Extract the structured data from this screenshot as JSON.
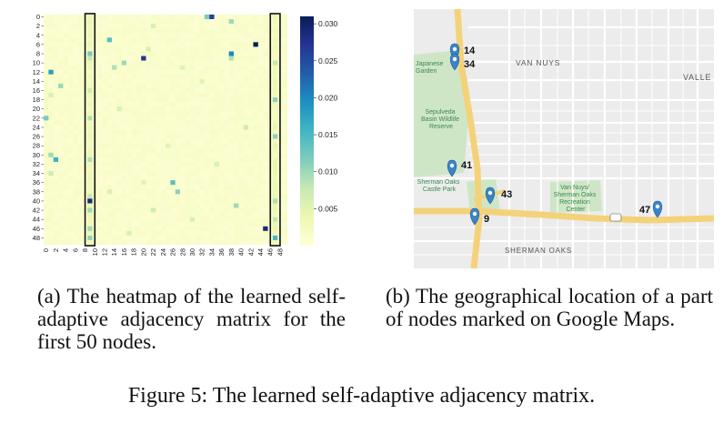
{
  "figure": {
    "caption": "Figure 5: The learned self-adaptive adjacency matrix."
  },
  "panel_a": {
    "caption": "(a) The heatmap of the learned self-adaptive adjacency matrix for the first 50 nodes.",
    "chart_data": {
      "type": "heatmap",
      "rows": 50,
      "cols": 50,
      "row_tick_labels": [
        "0",
        "2",
        "4",
        "6",
        "8",
        "10",
        "12",
        "14",
        "16",
        "18",
        "20",
        "22",
        "24",
        "26",
        "28",
        "30",
        "32",
        "34",
        "36",
        "38",
        "40",
        "42",
        "44",
        "46",
        "48"
      ],
      "col_tick_labels": [
        "0",
        "2",
        "4",
        "6",
        "8",
        "10",
        "12",
        "14",
        "16",
        "18",
        "20",
        "22",
        "24",
        "26",
        "28",
        "30",
        "32",
        "34",
        "36",
        "38",
        "40",
        "42",
        "44",
        "46",
        "48"
      ],
      "colorbar": {
        "min": 0,
        "max": 0.031,
        "tick_labels": [
          "0.005",
          "0.010",
          "0.015",
          "0.020",
          "0.025",
          "0.030"
        ],
        "tick_values": [
          0.005,
          0.01,
          0.015,
          0.02,
          0.025,
          0.03
        ],
        "colormap": "YlGnBu"
      },
      "highlighted_columns": [
        9,
        47
      ],
      "baseline_value": 0.0012,
      "notable_cells": [
        {
          "row": 0,
          "col": 34,
          "value": 0.026
        },
        {
          "row": 0,
          "col": 33,
          "value": 0.012
        },
        {
          "row": 1,
          "col": 38,
          "value": 0.01
        },
        {
          "row": 2,
          "col": 22,
          "value": 0.006
        },
        {
          "row": 5,
          "col": 13,
          "value": 0.014
        },
        {
          "row": 6,
          "col": 43,
          "value": 0.031
        },
        {
          "row": 7,
          "col": 21,
          "value": 0.006
        },
        {
          "row": 8,
          "col": 9,
          "value": 0.012
        },
        {
          "row": 8,
          "col": 38,
          "value": 0.02
        },
        {
          "row": 9,
          "col": 9,
          "value": 0.008
        },
        {
          "row": 9,
          "col": 20,
          "value": 0.027
        },
        {
          "row": 9,
          "col": 38,
          "value": 0.009
        },
        {
          "row": 10,
          "col": 16,
          "value": 0.01
        },
        {
          "row": 10,
          "col": 47,
          "value": 0.008
        },
        {
          "row": 11,
          "col": 14,
          "value": 0.009
        },
        {
          "row": 11,
          "col": 28,
          "value": 0.005
        },
        {
          "row": 12,
          "col": 1,
          "value": 0.018
        },
        {
          "row": 14,
          "col": 32,
          "value": 0.005
        },
        {
          "row": 15,
          "col": 3,
          "value": 0.01
        },
        {
          "row": 16,
          "col": 9,
          "value": 0.007
        },
        {
          "row": 17,
          "col": 1,
          "value": 0.006
        },
        {
          "row": 18,
          "col": 47,
          "value": 0.011
        },
        {
          "row": 20,
          "col": 15,
          "value": 0.006
        },
        {
          "row": 22,
          "col": 0,
          "value": 0.012
        },
        {
          "row": 22,
          "col": 9,
          "value": 0.009
        },
        {
          "row": 24,
          "col": 41,
          "value": 0.007
        },
        {
          "row": 26,
          "col": 47,
          "value": 0.011
        },
        {
          "row": 28,
          "col": 25,
          "value": 0.005
        },
        {
          "row": 30,
          "col": 1,
          "value": 0.01
        },
        {
          "row": 31,
          "col": 2,
          "value": 0.016
        },
        {
          "row": 31,
          "col": 9,
          "value": 0.009
        },
        {
          "row": 32,
          "col": 35,
          "value": 0.006
        },
        {
          "row": 34,
          "col": 1,
          "value": 0.007
        },
        {
          "row": 36,
          "col": 26,
          "value": 0.014
        },
        {
          "row": 36,
          "col": 20,
          "value": 0.005
        },
        {
          "row": 38,
          "col": 27,
          "value": 0.011
        },
        {
          "row": 38,
          "col": 13,
          "value": 0.006
        },
        {
          "row": 39,
          "col": 9,
          "value": 0.008
        },
        {
          "row": 40,
          "col": 9,
          "value": 0.029
        },
        {
          "row": 40,
          "col": 47,
          "value": 0.009
        },
        {
          "row": 41,
          "col": 39,
          "value": 0.01
        },
        {
          "row": 42,
          "col": 9,
          "value": 0.01
        },
        {
          "row": 42,
          "col": 22,
          "value": 0.007
        },
        {
          "row": 44,
          "col": 30,
          "value": 0.006
        },
        {
          "row": 44,
          "col": 47,
          "value": 0.008
        },
        {
          "row": 46,
          "col": 9,
          "value": 0.01
        },
        {
          "row": 46,
          "col": 45,
          "value": 0.029
        },
        {
          "row": 47,
          "col": 17,
          "value": 0.006
        },
        {
          "row": 48,
          "col": 9,
          "value": 0.011
        },
        {
          "row": 48,
          "col": 47,
          "value": 0.015
        }
      ]
    }
  },
  "panel_b": {
    "caption": "(b) The geographical location of a part of nodes marked on Google Maps.",
    "markers": [
      {
        "label": "14"
      },
      {
        "label": "34"
      },
      {
        "label": "41"
      },
      {
        "label": "43"
      },
      {
        "label": "9"
      },
      {
        "label": "47"
      }
    ],
    "place_labels": {
      "van_nuys": "VAN NUYS",
      "valley": "VALLE",
      "japanese_garden": "Japanese\nGarden",
      "sepulveda_basin": "Sepulveda\nBasin Wildlife\nReserve",
      "sherman_oaks_castle": "Sherman Oaks\nCastle Park",
      "van_nuys_rec": "Van Nuys/\nSherman Oaks\nRecreation\nCenter",
      "sherman_oaks": "SHERMAN OAKS"
    },
    "colors": {
      "marker": "#3a85c9",
      "highway": "#f2cf6b",
      "park": "#c8e4c0",
      "map_bg": "#eeeeee"
    }
  }
}
